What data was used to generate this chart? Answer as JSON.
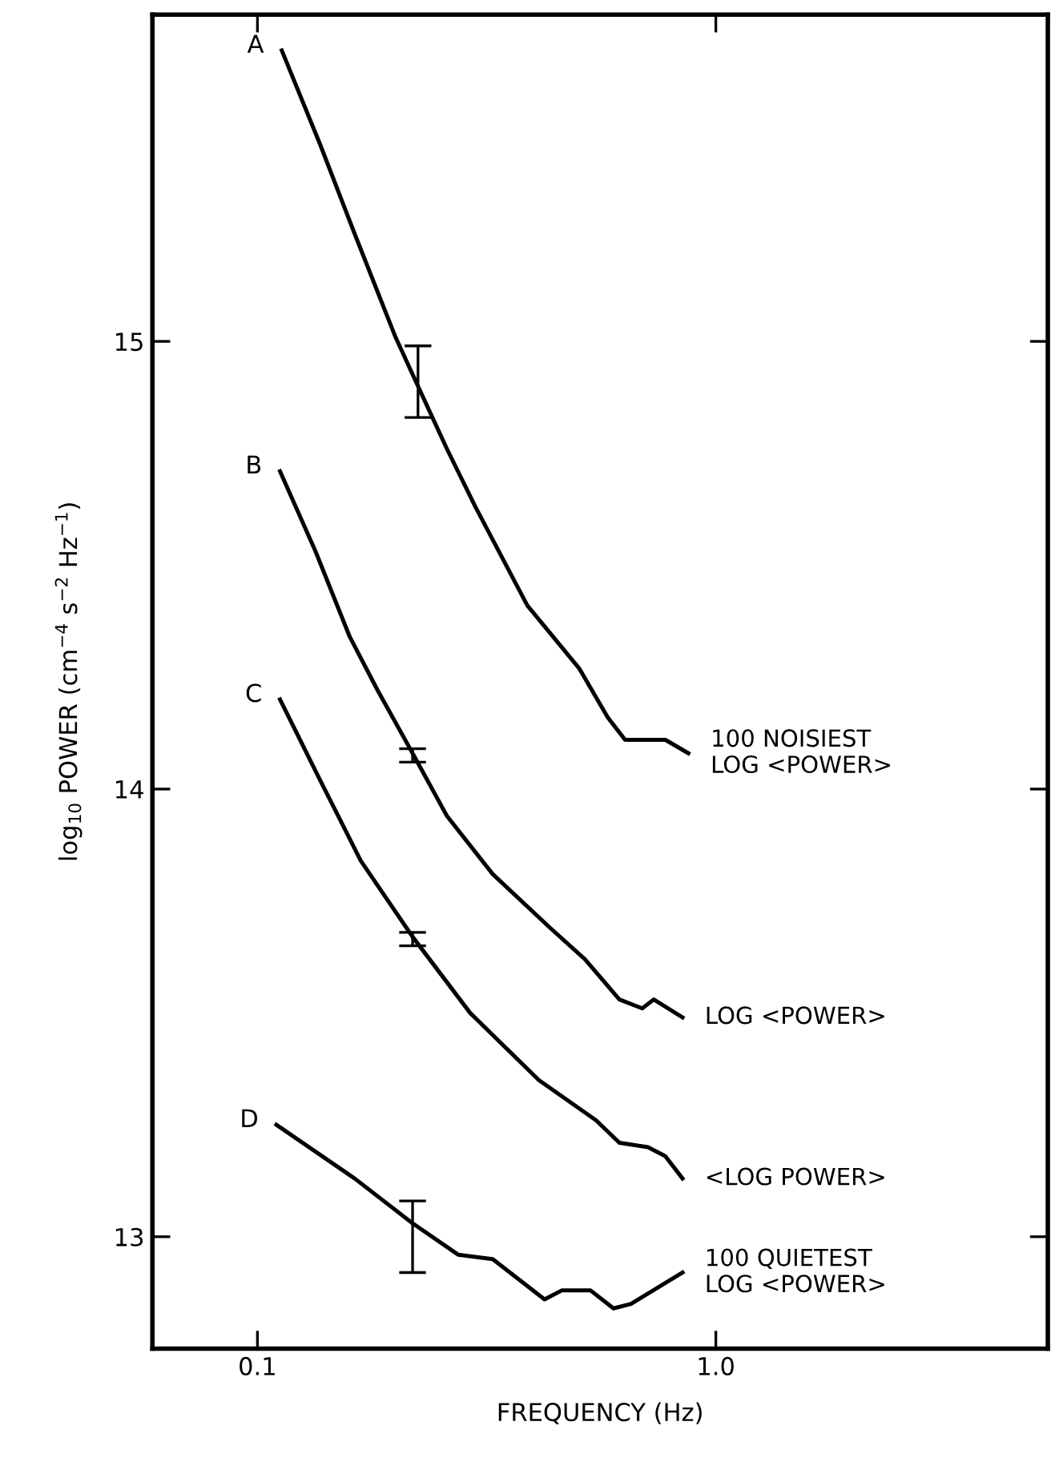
{
  "chart_data": {
    "type": "line",
    "xlabel": "FREQUENCY (Hz)",
    "ylabel": "log$_{10}$ POWER (cm$^{−4}$ s$^{−2}$ Hz$^{−1}$)",
    "log": "x",
    "grid": false,
    "legend": false,
    "marker": "none",
    "line_style": "solid",
    "xlim": [
      0.059,
      5.3
    ],
    "ylim": [
      12.75,
      15.73
    ],
    "xticks": [
      0.1,
      {
        "value": 1,
        "label": "1.0"
      }
    ],
    "yticks": [
      13,
      14,
      15
    ],
    "series": [
      {
        "name": "100 NOISIEST\nLOG <POWER>",
        "color": "#000000",
        "x": [
          0.113,
          0.137,
          0.163,
          0.2,
          0.224,
          0.259,
          0.299,
          0.388,
          0.503,
          0.581,
          0.634,
          0.776,
          0.871
        ],
        "values": [
          15.65,
          15.44,
          15.24,
          15.01,
          14.9,
          14.76,
          14.63,
          14.41,
          14.27,
          14.16,
          14.11,
          14.11,
          14.08
        ],
        "errors": [
          null,
          null,
          null,
          null,
          [
            14.83,
            14.99
          ],
          null,
          null,
          null,
          null,
          null,
          null,
          null,
          null
        ]
      },
      {
        "name": "LOG <POWER>",
        "color": "#000000",
        "x": [
          0.112,
          0.134,
          0.159,
          0.183,
          0.218,
          0.259,
          0.326,
          0.435,
          0.518,
          0.616,
          0.691,
          0.732,
          0.846
        ],
        "values": [
          14.71,
          14.53,
          14.34,
          14.22,
          14.08,
          13.94,
          13.81,
          13.69,
          13.62,
          13.53,
          13.51,
          13.53,
          13.49
        ],
        "errors": [
          null,
          null,
          null,
          null,
          [
            14.06,
            14.09
          ],
          null,
          null,
          null,
          null,
          null,
          null,
          null,
          null
        ]
      },
      {
        "name": "<LOG POWER>",
        "color": "#000000",
        "x": [
          0.112,
          0.137,
          0.168,
          0.218,
          0.291,
          0.411,
          0.548,
          0.616,
          0.711,
          0.776,
          0.846
        ],
        "values": [
          14.2,
          14.02,
          13.84,
          13.67,
          13.5,
          13.35,
          13.26,
          13.21,
          13.2,
          13.18,
          13.13
        ],
        "errors": [
          null,
          null,
          null,
          [
            13.65,
            13.68
          ],
          null,
          null,
          null,
          null,
          null,
          null,
          null
        ]
      },
      {
        "name": "100 QUIETEST\nLOG <POWER>",
        "color": "#000000",
        "x": [
          0.11,
          0.163,
          0.218,
          0.274,
          0.326,
          0.423,
          0.461,
          0.533,
          0.598,
          0.653,
          0.846
        ],
        "values": [
          13.25,
          13.13,
          13.03,
          12.96,
          12.95,
          12.86,
          12.88,
          12.88,
          12.84,
          12.85,
          12.92
        ],
        "errors": [
          null,
          null,
          [
            12.92,
            13.08
          ],
          null,
          null,
          null,
          null,
          null,
          null,
          null,
          null
        ]
      }
    ],
    "annotations": [
      {
        "text": "A",
        "x": 0.113,
        "y": 15.65
      },
      {
        "text": "B",
        "x": 0.112,
        "y": 14.71
      },
      {
        "text": "C",
        "x": 0.112,
        "y": 14.2
      },
      {
        "text": "D",
        "x": 0.11,
        "y": 13.25
      }
    ]
  }
}
